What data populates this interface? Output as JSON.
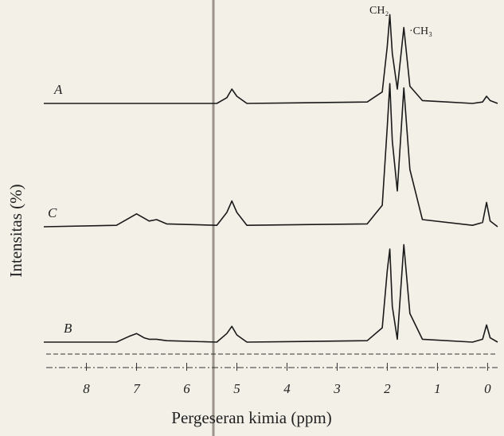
{
  "chart_data": {
    "type": "line",
    "xlabel": "Pergeseran kimia (ppm)",
    "ylabel": "Intensitas (%)",
    "annotations": [
      "CH₂",
      "·CH₃"
    ],
    "xlim": [
      8.85,
      -0.2
    ],
    "xticks": [
      8,
      7,
      6,
      5,
      4,
      3,
      2,
      1,
      0
    ],
    "x": [
      8.85,
      7.4,
      7.15,
      7.0,
      6.85,
      6.75,
      6.6,
      6.4,
      5.4,
      5.2,
      5.1,
      5.0,
      4.8,
      2.4,
      2.1,
      2.0,
      1.95,
      1.9,
      1.8,
      1.67,
      1.55,
      1.3,
      0.3,
      0.1,
      0.02,
      -0.05,
      -0.2
    ],
    "series": [
      {
        "name": "A",
        "color": "#1a1a1a",
        "values": [
          0,
          0,
          0,
          0,
          0,
          0,
          0,
          0,
          0,
          4,
          10,
          5,
          0,
          1,
          8,
          40,
          62,
          35,
          10,
          53,
          12,
          2,
          0,
          1,
          5,
          2,
          0
        ]
      },
      {
        "name": "C",
        "color": "#1a1a1a",
        "values": [
          0,
          1,
          6,
          9,
          6,
          4,
          5,
          2,
          1,
          10,
          18,
          10,
          1,
          2,
          15,
          70,
          100,
          60,
          25,
          97,
          40,
          5,
          1,
          3,
          17,
          4,
          0
        ]
      },
      {
        "name": "B",
        "color": "#1a1a1a",
        "values": [
          0,
          0,
          4,
          6,
          3,
          2,
          2,
          1,
          0,
          6,
          11,
          5,
          0,
          1,
          10,
          50,
          65,
          25,
          2,
          68,
          20,
          2,
          0,
          2,
          12,
          3,
          0
        ]
      }
    ]
  }
}
